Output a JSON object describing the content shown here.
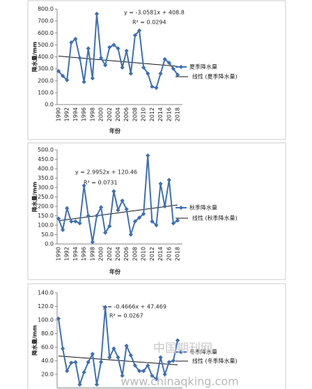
{
  "chart_data": [
    {
      "type": "line",
      "y_label": "降水量/mm",
      "x_label": "年份",
      "categories": [
        "1990",
        null,
        "1992",
        null,
        "1994",
        null,
        "1996",
        null,
        "1998",
        null,
        "2000",
        null,
        "2002",
        null,
        "2004",
        null,
        "2006",
        null,
        "2008",
        null,
        "2010",
        null,
        "2012",
        null,
        "2014",
        null,
        "2016",
        null,
        "2018"
      ],
      "series": [
        {
          "name": "夏季降水量",
          "color": "#3d6fb6",
          "values": [
            280,
            240,
            205,
            520,
            550,
            390,
            190,
            470,
            220,
            760,
            390,
            330,
            480,
            500,
            470,
            310,
            450,
            260,
            580,
            620,
            310,
            260,
            150,
            140,
            260,
            380,
            350,
            300,
            250
          ]
        }
      ],
      "trendline": {
        "name": "线性 (夏季降水量)",
        "equation": "y = -3.0581x + 408.8",
        "r_squared": "R² = 0.0294",
        "slope": -3.0581,
        "intercept": 408.8
      },
      "ylim": [
        0,
        800
      ],
      "yticks": [
        {
          "value": 0,
          "label": "0.0"
        },
        {
          "value": 100,
          "label": "100.0"
        },
        {
          "value": 200,
          "label": "200.0"
        },
        {
          "value": 300,
          "label": "300.0"
        },
        {
          "value": 400,
          "label": "400.0"
        },
        {
          "value": 500,
          "label": "500.0"
        },
        {
          "value": 600,
          "label": "600.0"
        },
        {
          "value": 700,
          "label": "700.0"
        },
        {
          "value": 800,
          "label": "800.0"
        }
      ]
    },
    {
      "type": "line",
      "y_label": "降水量/mm",
      "x_label": "年份",
      "categories": [
        "1990",
        null,
        "1992",
        null,
        "1994",
        null,
        "1996",
        null,
        "1998",
        null,
        "2000",
        null,
        "2002",
        null,
        "2004",
        null,
        "2006",
        null,
        "2008",
        null,
        "2010",
        null,
        "2012",
        null,
        "2014",
        null,
        "2016",
        null,
        "2018"
      ],
      "series": [
        {
          "name": "秋季降水量",
          "color": "#3d6fb6",
          "values": [
            135,
            75,
            190,
            120,
            120,
            110,
            310,
            150,
            10,
            150,
            195,
            60,
            95,
            280,
            180,
            230,
            185,
            50,
            120,
            140,
            160,
            470,
            120,
            100,
            320,
            200,
            340,
            110,
            125
          ]
        }
      ],
      "trendline": {
        "name": "线性 (秋季降水量)",
        "equation": "y = 2.9952x + 120.46",
        "r_squared": "R² = 0.0731",
        "slope": 2.9952,
        "intercept": 120.46
      },
      "ylim": [
        0,
        500
      ],
      "yticks": [
        {
          "value": 0,
          "label": "0.0"
        },
        {
          "value": 50,
          "label": "50.0"
        },
        {
          "value": 100,
          "label": "100.0"
        },
        {
          "value": 150,
          "label": "150.0"
        },
        {
          "value": 200,
          "label": "200.0"
        },
        {
          "value": 250,
          "label": "250.0"
        },
        {
          "value": 300,
          "label": "300.0"
        },
        {
          "value": 350,
          "label": "350.0"
        },
        {
          "value": 400,
          "label": "400.0"
        },
        {
          "value": 450,
          "label": "450.0"
        },
        {
          "value": 500,
          "label": "500.0"
        }
      ]
    },
    {
      "type": "line",
      "y_label": "降水量/mm",
      "series": [
        {
          "name": "冬季降水量",
          "color": "#3d6fb6",
          "values": [
            102,
            58,
            25,
            37,
            38,
            5,
            23,
            38,
            50,
            5,
            38,
            119,
            45,
            58,
            45,
            18,
            62,
            48,
            33,
            25,
            25,
            33,
            18,
            13,
            45,
            20,
            38,
            40,
            70
          ]
        }
      ],
      "trendline": {
        "name": "线性 (冬季降水量)",
        "equation": "y = -0.4666x + 47.469",
        "r_squared": "R² = 0.0267",
        "slope": -0.4666,
        "intercept": 47.469
      },
      "ylim": [
        0,
        140
      ],
      "yticks": [
        {
          "value": 20,
          "label": "20.0"
        },
        {
          "value": 40,
          "label": "40.0"
        },
        {
          "value": 60,
          "label": "60.0"
        },
        {
          "value": 80,
          "label": "80.0"
        },
        {
          "value": 100,
          "label": "100.0"
        },
        {
          "value": 120,
          "label": "120.0"
        },
        {
          "value": 140,
          "label": "140.0"
        }
      ]
    }
  ],
  "watermark": {
    "text": "中国期刊网",
    "url": "www.chinaqking.com"
  }
}
